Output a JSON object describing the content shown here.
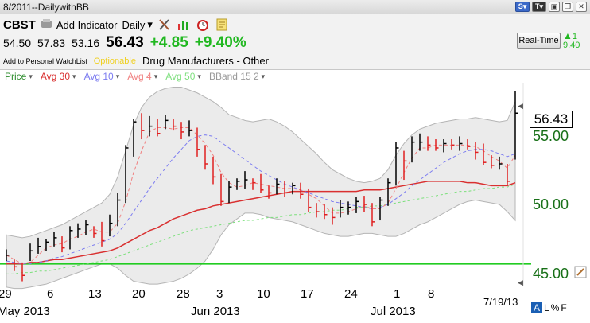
{
  "window": {
    "title": "8/2011--DailywithBB"
  },
  "header": {
    "symbol": "CBST",
    "add_indicator_label": "Add Indicator",
    "period_label": "Daily",
    "open": "54.50",
    "high": "57.83",
    "low": "53.16",
    "last": "56.43",
    "change": "+4.85",
    "change_pct": "+9.40%",
    "watchlist_link": "Add to Personal WatchList",
    "optionable": "Optionable",
    "industry": "Drug Manufacturers - Other",
    "realtime_button": "Real-Time",
    "realtime_change": "1",
    "realtime_last": "9.40"
  },
  "legend": {
    "items": [
      {
        "label": "Price",
        "color": "#2c8c2c"
      },
      {
        "label": "Avg 30",
        "color": "#d93030"
      },
      {
        "label": "Avg 10",
        "color": "#7c7cf0"
      },
      {
        "label": "Avg 4",
        "color": "#f08080"
      },
      {
        "label": "Avg 50",
        "color": "#80e080"
      },
      {
        "label": "BBand 15 2",
        "color": "#999999"
      }
    ]
  },
  "price_box": "56.43",
  "footer": {
    "date": "7/19/13",
    "scale_a": "A",
    "scale_l": "L",
    "scale_pct": "%",
    "scale_f": "F"
  },
  "chart_data": {
    "type": "ohlc",
    "y_ticks": [
      "55.00",
      "50.00",
      "45.00"
    ],
    "x_ticks": [
      "29",
      "6",
      "13",
      "20",
      "28",
      "3",
      "10",
      "17",
      "24",
      "1",
      "8"
    ],
    "month_labels": [
      "May 2013",
      "Jun 2013",
      "Jul 2013"
    ],
    "ylim": [
      44.5,
      58.5
    ],
    "horizontal_line": 46.0,
    "bars": [
      {
        "high": 47.0,
        "low": 46.2,
        "close": 46.6
      },
      {
        "high": 46.3,
        "low": 45.5,
        "close": 45.8
      },
      {
        "high": 46.1,
        "low": 44.8,
        "close": 45.2
      },
      {
        "high": 47.4,
        "low": 46.2,
        "close": 46.9
      },
      {
        "high": 47.8,
        "low": 46.7,
        "close": 47.2
      },
      {
        "high": 47.7,
        "low": 46.9,
        "close": 47.5
      },
      {
        "high": 48.2,
        "low": 47.2,
        "close": 47.8
      },
      {
        "high": 47.9,
        "low": 46.8,
        "close": 47.1
      },
      {
        "high": 48.6,
        "low": 47.0,
        "close": 48.3
      },
      {
        "high": 48.8,
        "low": 47.8,
        "close": 48.4
      },
      {
        "high": 49.0,
        "low": 48.0,
        "close": 48.7
      },
      {
        "high": 48.6,
        "low": 47.8,
        "close": 48.1
      },
      {
        "high": 48.9,
        "low": 47.2,
        "close": 47.6
      },
      {
        "high": 49.4,
        "low": 47.9,
        "close": 48.8
      },
      {
        "high": 50.9,
        "low": 48.6,
        "close": 50.4
      },
      {
        "high": 54.2,
        "low": 50.2,
        "close": 54.0
      },
      {
        "high": 56.0,
        "low": 53.4,
        "close": 55.8
      },
      {
        "high": 56.4,
        "low": 54.6,
        "close": 55.2
      },
      {
        "high": 56.2,
        "low": 54.8,
        "close": 55.5
      },
      {
        "high": 56.0,
        "low": 54.8,
        "close": 55.0
      },
      {
        "high": 56.3,
        "low": 55.3,
        "close": 55.9
      },
      {
        "high": 56.0,
        "low": 55.2,
        "close": 55.5
      },
      {
        "high": 55.8,
        "low": 54.6,
        "close": 55.1
      },
      {
        "high": 55.9,
        "low": 54.8,
        "close": 55.2
      },
      {
        "high": 55.4,
        "low": 53.4,
        "close": 53.9
      },
      {
        "high": 54.2,
        "low": 52.5,
        "close": 52.9
      },
      {
        "high": 53.4,
        "low": 51.5,
        "close": 52.0
      },
      {
        "high": 52.2,
        "low": 50.0,
        "close": 50.3
      },
      {
        "high": 51.7,
        "low": 50.2,
        "close": 51.3
      },
      {
        "high": 51.9,
        "low": 51.1,
        "close": 51.7
      },
      {
        "high": 52.4,
        "low": 51.2,
        "close": 51.8
      },
      {
        "high": 51.9,
        "low": 51.1,
        "close": 51.6
      },
      {
        "high": 52.2,
        "low": 50.9,
        "close": 51.1
      },
      {
        "high": 51.4,
        "low": 50.5,
        "close": 50.9
      },
      {
        "high": 51.9,
        "low": 50.8,
        "close": 51.5
      },
      {
        "high": 51.7,
        "low": 50.6,
        "close": 50.9
      },
      {
        "high": 51.6,
        "low": 50.8,
        "close": 51.4
      },
      {
        "high": 51.6,
        "low": 50.5,
        "close": 50.8
      },
      {
        "high": 51.2,
        "low": 49.6,
        "close": 49.9
      },
      {
        "high": 50.2,
        "low": 49.2,
        "close": 49.6
      },
      {
        "high": 50.1,
        "low": 49.1,
        "close": 49.4
      },
      {
        "high": 49.9,
        "low": 48.7,
        "close": 49.2
      },
      {
        "high": 50.4,
        "low": 49.2,
        "close": 49.9
      },
      {
        "high": 50.3,
        "low": 49.4,
        "close": 49.9
      },
      {
        "high": 50.6,
        "low": 49.5,
        "close": 50.3
      },
      {
        "high": 50.7,
        "low": 49.6,
        "close": 50.1
      },
      {
        "high": 50.2,
        "low": 48.6,
        "close": 48.9
      },
      {
        "high": 50.6,
        "low": 49.0,
        "close": 50.4
      },
      {
        "high": 51.9,
        "low": 50.0,
        "close": 51.6
      },
      {
        "high": 54.4,
        "low": 51.4,
        "close": 54.0
      },
      {
        "high": 53.8,
        "low": 51.8,
        "close": 53.1
      },
      {
        "high": 54.8,
        "low": 53.0,
        "close": 54.4
      },
      {
        "high": 55.0,
        "low": 53.8,
        "close": 54.4
      },
      {
        "high": 54.8,
        "low": 53.8,
        "close": 54.2
      },
      {
        "high": 54.6,
        "low": 53.8,
        "close": 54.0
      },
      {
        "high": 54.6,
        "low": 53.7,
        "close": 54.3
      },
      {
        "high": 54.6,
        "low": 53.9,
        "close": 54.2
      },
      {
        "high": 54.8,
        "low": 53.8,
        "close": 54.3
      },
      {
        "high": 54.6,
        "low": 53.9,
        "close": 54.1
      },
      {
        "high": 54.4,
        "low": 53.2,
        "close": 53.7
      },
      {
        "high": 54.3,
        "low": 52.8,
        "close": 53.0
      },
      {
        "high": 53.5,
        "low": 52.6,
        "close": 52.8
      },
      {
        "high": 53.4,
        "low": 52.5,
        "close": 52.9
      },
      {
        "high": 52.9,
        "low": 51.4,
        "close": 51.7
      },
      {
        "high": 57.9,
        "low": 53.2,
        "close": 56.4
      }
    ],
    "series": [
      {
        "name": "Avg 30",
        "values": [
          46.0,
          46.0,
          46.0,
          46.1,
          46.1,
          46.2,
          46.3,
          46.3,
          46.4,
          46.5,
          46.6,
          46.7,
          46.8,
          46.9,
          47.1,
          47.4,
          47.7,
          48.0,
          48.3,
          48.5,
          48.8,
          49.1,
          49.3,
          49.5,
          49.7,
          49.8,
          50.0,
          50.1,
          50.2,
          50.3,
          50.4,
          50.5,
          50.6,
          50.7,
          50.8,
          50.9,
          51.0,
          51.0,
          51.0,
          51.0,
          51.0,
          51.0,
          51.0,
          51.0,
          51.0,
          51.1,
          51.1,
          51.1,
          51.2,
          51.3,
          51.4,
          51.5,
          51.6,
          51.7,
          51.7,
          51.7,
          51.7,
          51.7,
          51.6,
          51.6,
          51.5,
          51.4,
          51.4,
          51.4,
          51.6
        ]
      },
      {
        "name": "Avg 10",
        "values": [
          46.2,
          46.1,
          46.0,
          46.0,
          46.1,
          46.2,
          46.4,
          46.5,
          46.7,
          46.9,
          47.1,
          47.3,
          47.5,
          47.7,
          48.1,
          48.8,
          49.6,
          50.4,
          51.2,
          51.9,
          52.6,
          53.3,
          53.9,
          54.5,
          54.8,
          54.9,
          54.8,
          54.4,
          54.0,
          53.6,
          53.2,
          52.8,
          52.4,
          52.1,
          51.8,
          51.5,
          51.3,
          51.1,
          50.9,
          50.7,
          50.5,
          50.3,
          50.2,
          50.1,
          50.0,
          49.9,
          49.8,
          49.9,
          50.1,
          50.5,
          50.9,
          51.4,
          51.8,
          52.2,
          52.6,
          53.0,
          53.3,
          53.6,
          53.8,
          53.9,
          53.9,
          53.8,
          53.6,
          53.4,
          53.6
        ]
      },
      {
        "name": "Avg 4",
        "values": [
          46.6,
          46.3,
          46.0,
          46.1,
          46.6,
          47.1,
          47.3,
          47.4,
          47.7,
          47.9,
          48.2,
          48.4,
          48.2,
          48.2,
          48.8,
          50.3,
          52.3,
          53.8,
          55.1,
          55.4,
          55.4,
          55.3,
          55.4,
          55.4,
          54.9,
          54.3,
          53.5,
          52.3,
          51.6,
          51.3,
          51.4,
          51.6,
          51.5,
          51.4,
          51.3,
          51.2,
          51.2,
          51.1,
          50.8,
          50.5,
          50.0,
          49.5,
          49.5,
          49.6,
          49.8,
          50.0,
          49.8,
          49.8,
          50.2,
          51.2,
          52.3,
          53.3,
          54.0,
          54.0,
          54.2,
          54.2,
          54.2,
          54.2,
          54.2,
          54.1,
          53.8,
          53.4,
          53.1,
          52.6,
          53.5
        ]
      },
      {
        "name": "Avg 50",
        "values": [
          45.3,
          45.3,
          45.4,
          45.4,
          45.5,
          45.5,
          45.6,
          45.7,
          45.8,
          45.9,
          46.0,
          46.1,
          46.2,
          46.3,
          46.5,
          46.7,
          46.9,
          47.1,
          47.3,
          47.5,
          47.7,
          47.9,
          48.1,
          48.3,
          48.4,
          48.5,
          48.6,
          48.7,
          48.8,
          48.9,
          49.0,
          49.0,
          49.1,
          49.2,
          49.2,
          49.3,
          49.4,
          49.4,
          49.5,
          49.6,
          49.6,
          49.7,
          49.7,
          49.8,
          49.9,
          49.9,
          50.0,
          50.0,
          50.1,
          50.2,
          50.3,
          50.4,
          50.5,
          50.6,
          50.7,
          50.8,
          50.9,
          51.0,
          51.0,
          51.1,
          51.2,
          51.2,
          51.3,
          51.3,
          51.5
        ]
      },
      {
        "name": "BBand Upper",
        "values": [
          48.0,
          47.9,
          47.8,
          47.9,
          48.1,
          48.3,
          48.5,
          48.7,
          49.0,
          49.3,
          49.6,
          49.9,
          50.2,
          50.8,
          52.0,
          53.8,
          55.6,
          56.8,
          57.5,
          57.9,
          58.1,
          58.2,
          58.2,
          58.0,
          57.8,
          57.5,
          57.2,
          56.8,
          56.3,
          56.1,
          55.9,
          55.8,
          55.9,
          56.0,
          55.8,
          55.5,
          55.1,
          54.6,
          54.1,
          53.6,
          53.0,
          52.5,
          52.2,
          51.9,
          51.7,
          51.6,
          51.7,
          51.9,
          52.5,
          53.5,
          54.3,
          54.9,
          55.3,
          55.5,
          55.7,
          55.8,
          55.9,
          56.0,
          56.0,
          56.1,
          56.0,
          55.9,
          55.8,
          55.9,
          57.2
        ]
      },
      {
        "name": "BBand Lower",
        "values": [
          44.4,
          44.3,
          44.3,
          44.4,
          44.5,
          44.6,
          44.8,
          45.0,
          45.2,
          45.4,
          45.6,
          45.8,
          46.0,
          46.0,
          45.7,
          45.2,
          44.8,
          44.7,
          44.6,
          44.6,
          44.7,
          44.8,
          45.0,
          45.3,
          45.7,
          46.2,
          47.0,
          48.0,
          48.7,
          49.1,
          49.5,
          49.5,
          49.4,
          49.2,
          49.1,
          49.0,
          48.9,
          48.7,
          48.5,
          48.3,
          48.1,
          48.0,
          47.9,
          47.9,
          48.0,
          48.1,
          48.1,
          48.0,
          47.9,
          47.9,
          48.1,
          48.4,
          48.7,
          48.9,
          49.2,
          49.5,
          49.8,
          50.1,
          50.3,
          50.4,
          50.3,
          50.2,
          50.1,
          49.6,
          49.0
        ]
      }
    ]
  }
}
